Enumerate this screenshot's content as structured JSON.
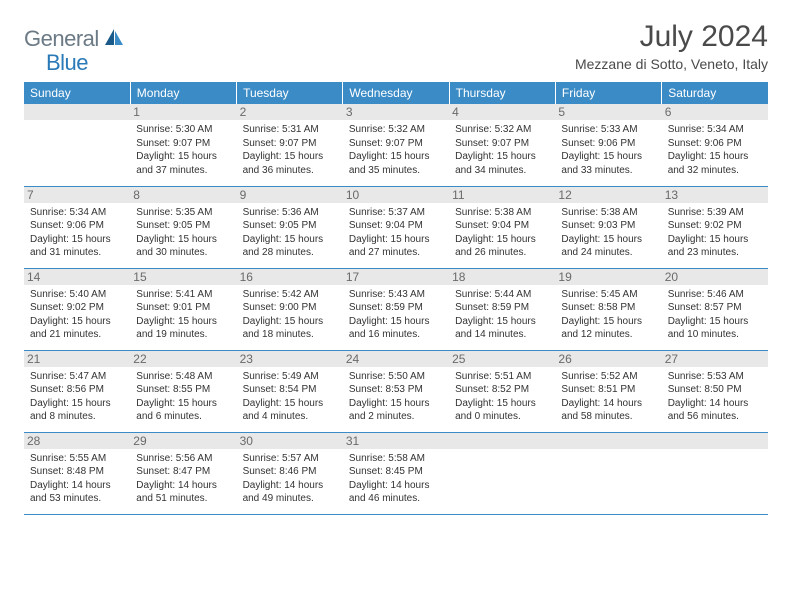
{
  "logo": {
    "text1": "General",
    "text2": "Blue"
  },
  "title": "July 2024",
  "location": "Mezzane di Sotto, Veneto, Italy",
  "header_color": "#3b8bc6",
  "days": [
    "Sunday",
    "Monday",
    "Tuesday",
    "Wednesday",
    "Thursday",
    "Friday",
    "Saturday"
  ],
  "weeks": [
    [
      null,
      {
        "n": "1",
        "sr": "5:30 AM",
        "ss": "9:07 PM",
        "dl": "15 hours and 37 minutes."
      },
      {
        "n": "2",
        "sr": "5:31 AM",
        "ss": "9:07 PM",
        "dl": "15 hours and 36 minutes."
      },
      {
        "n": "3",
        "sr": "5:32 AM",
        "ss": "9:07 PM",
        "dl": "15 hours and 35 minutes."
      },
      {
        "n": "4",
        "sr": "5:32 AM",
        "ss": "9:07 PM",
        "dl": "15 hours and 34 minutes."
      },
      {
        "n": "5",
        "sr": "5:33 AM",
        "ss": "9:06 PM",
        "dl": "15 hours and 33 minutes."
      },
      {
        "n": "6",
        "sr": "5:34 AM",
        "ss": "9:06 PM",
        "dl": "15 hours and 32 minutes."
      }
    ],
    [
      {
        "n": "7",
        "sr": "5:34 AM",
        "ss": "9:06 PM",
        "dl": "15 hours and 31 minutes."
      },
      {
        "n": "8",
        "sr": "5:35 AM",
        "ss": "9:05 PM",
        "dl": "15 hours and 30 minutes."
      },
      {
        "n": "9",
        "sr": "5:36 AM",
        "ss": "9:05 PM",
        "dl": "15 hours and 28 minutes."
      },
      {
        "n": "10",
        "sr": "5:37 AM",
        "ss": "9:04 PM",
        "dl": "15 hours and 27 minutes."
      },
      {
        "n": "11",
        "sr": "5:38 AM",
        "ss": "9:04 PM",
        "dl": "15 hours and 26 minutes."
      },
      {
        "n": "12",
        "sr": "5:38 AM",
        "ss": "9:03 PM",
        "dl": "15 hours and 24 minutes."
      },
      {
        "n": "13",
        "sr": "5:39 AM",
        "ss": "9:02 PM",
        "dl": "15 hours and 23 minutes."
      }
    ],
    [
      {
        "n": "14",
        "sr": "5:40 AM",
        "ss": "9:02 PM",
        "dl": "15 hours and 21 minutes."
      },
      {
        "n": "15",
        "sr": "5:41 AM",
        "ss": "9:01 PM",
        "dl": "15 hours and 19 minutes."
      },
      {
        "n": "16",
        "sr": "5:42 AM",
        "ss": "9:00 PM",
        "dl": "15 hours and 18 minutes."
      },
      {
        "n": "17",
        "sr": "5:43 AM",
        "ss": "8:59 PM",
        "dl": "15 hours and 16 minutes."
      },
      {
        "n": "18",
        "sr": "5:44 AM",
        "ss": "8:59 PM",
        "dl": "15 hours and 14 minutes."
      },
      {
        "n": "19",
        "sr": "5:45 AM",
        "ss": "8:58 PM",
        "dl": "15 hours and 12 minutes."
      },
      {
        "n": "20",
        "sr": "5:46 AM",
        "ss": "8:57 PM",
        "dl": "15 hours and 10 minutes."
      }
    ],
    [
      {
        "n": "21",
        "sr": "5:47 AM",
        "ss": "8:56 PM",
        "dl": "15 hours and 8 minutes."
      },
      {
        "n": "22",
        "sr": "5:48 AM",
        "ss": "8:55 PM",
        "dl": "15 hours and 6 minutes."
      },
      {
        "n": "23",
        "sr": "5:49 AM",
        "ss": "8:54 PM",
        "dl": "15 hours and 4 minutes."
      },
      {
        "n": "24",
        "sr": "5:50 AM",
        "ss": "8:53 PM",
        "dl": "15 hours and 2 minutes."
      },
      {
        "n": "25",
        "sr": "5:51 AM",
        "ss": "8:52 PM",
        "dl": "15 hours and 0 minutes."
      },
      {
        "n": "26",
        "sr": "5:52 AM",
        "ss": "8:51 PM",
        "dl": "14 hours and 58 minutes."
      },
      {
        "n": "27",
        "sr": "5:53 AM",
        "ss": "8:50 PM",
        "dl": "14 hours and 56 minutes."
      }
    ],
    [
      {
        "n": "28",
        "sr": "5:55 AM",
        "ss": "8:48 PM",
        "dl": "14 hours and 53 minutes."
      },
      {
        "n": "29",
        "sr": "5:56 AM",
        "ss": "8:47 PM",
        "dl": "14 hours and 51 minutes."
      },
      {
        "n": "30",
        "sr": "5:57 AM",
        "ss": "8:46 PM",
        "dl": "14 hours and 49 minutes."
      },
      {
        "n": "31",
        "sr": "5:58 AM",
        "ss": "8:45 PM",
        "dl": "14 hours and 46 minutes."
      },
      null,
      null,
      null
    ]
  ],
  "labels": {
    "sunrise": "Sunrise:",
    "sunset": "Sunset:",
    "daylight": "Daylight:"
  }
}
